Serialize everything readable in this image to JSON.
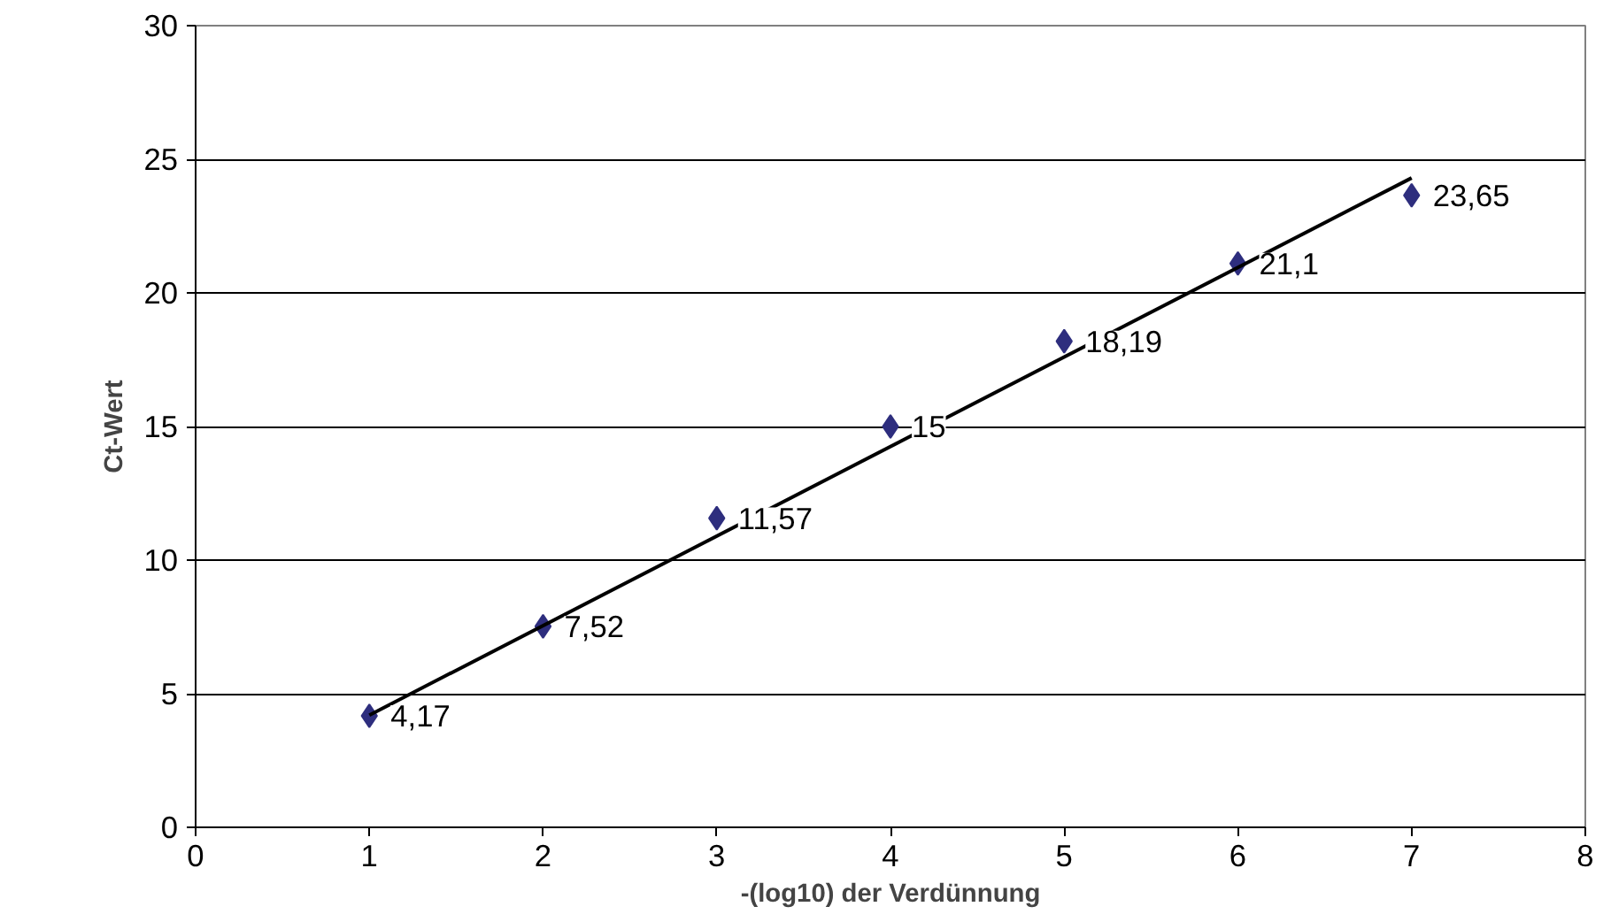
{
  "chart_data": {
    "type": "scatter",
    "xlabel": "-(log10) der Verdünnung",
    "ylabel": "Ct-Wert",
    "x": [
      1,
      2,
      3,
      4,
      5,
      6,
      7
    ],
    "series": [
      {
        "type": "scatter",
        "color": "#2e2e7e",
        "marker": "diamond",
        "values": [
          4.17,
          7.52,
          11.57,
          15,
          18.19,
          21.1,
          23.65
        ],
        "value_labels": [
          "4,17",
          "7,52",
          "11,57",
          "15",
          "18,19",
          "21,1",
          "23,65"
        ]
      },
      {
        "type": "line",
        "color": "#000000",
        "marker": "none",
        "line_style": "solid",
        "x": [
          1,
          7
        ],
        "values": [
          4.2,
          24.3
        ]
      }
    ],
    "xlim": [
      0,
      8
    ],
    "xticks": [
      0,
      1,
      2,
      3,
      4,
      5,
      6,
      7,
      8
    ],
    "ylim": [
      0,
      30
    ],
    "yticks": [
      0,
      5,
      10,
      15,
      20,
      25,
      30
    ],
    "grid": "y"
  }
}
